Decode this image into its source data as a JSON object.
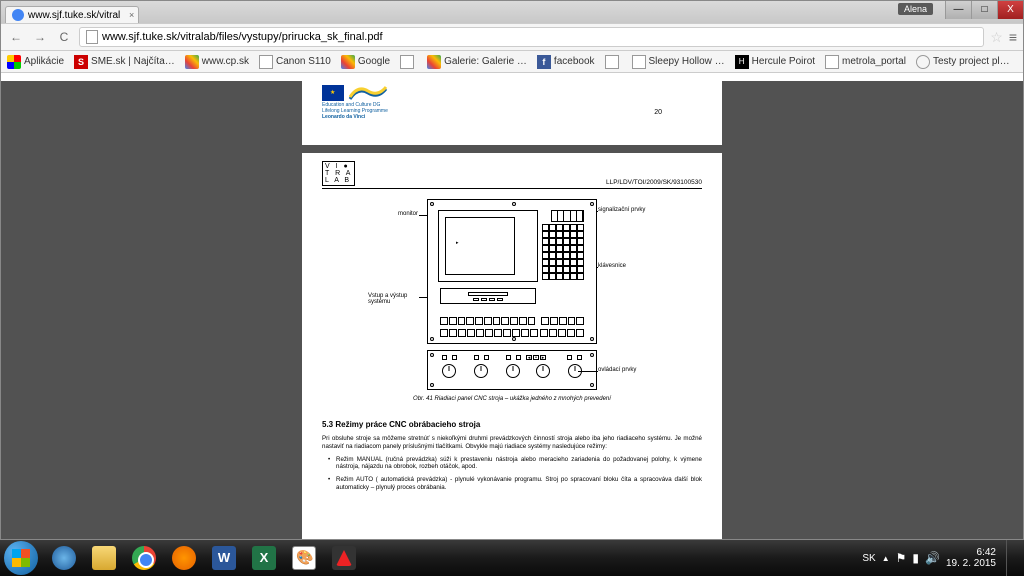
{
  "browser": {
    "tab_title": "www.sjf.tuke.sk/vitral",
    "url": "www.sjf.tuke.sk/vitralab/files/vystupy/prirucka_sk_final.pdf",
    "user_badge": "Alena"
  },
  "win_controls": {
    "min": "—",
    "max": "□",
    "close": "X"
  },
  "nav": {
    "back": "←",
    "fwd": "→",
    "reload": "C"
  },
  "bookmarks": [
    {
      "icon": "apps",
      "label": "Aplikácie"
    },
    {
      "icon": "red",
      "glyph": "S",
      "label": "SME.sk | Najčíta…"
    },
    {
      "icon": "google",
      "label": "www.cp.sk"
    },
    {
      "icon": "page",
      "label": "Canon S110"
    },
    {
      "icon": "google",
      "label": "Google"
    },
    {
      "icon": "page",
      "label": ""
    },
    {
      "icon": "google",
      "label": "Galerie: Galerie …"
    },
    {
      "icon": "fb",
      "glyph": "f",
      "label": "facebook"
    },
    {
      "icon": "page",
      "label": ""
    },
    {
      "icon": "page",
      "label": "Sleepy Hollow …"
    },
    {
      "icon": "hp",
      "glyph": "H",
      "label": "Hercule Poirot"
    },
    {
      "icon": "page",
      "label": "metrola_portal"
    },
    {
      "icon": "clock",
      "label": "Testy project pl…"
    }
  ],
  "pdf": {
    "top_page": {
      "leonardo": "Lifelong Learning Programme",
      "leonardo2": "Leonardo da Vinci",
      "edu_label": "Education and Culture DG",
      "page_number": "20"
    },
    "main_page": {
      "vitralab": [
        "V I ●",
        "T R A",
        "L A B"
      ],
      "doc_code": "LLP/LDV/TOI/2009/SK/93100530",
      "labels": {
        "monitor": "monitor",
        "signal": "signalizační prvky",
        "keyboard": "klávesnice",
        "io": "Vstup a výstup\nsystému",
        "controls": "ovládací prvky"
      },
      "caption": "Obr. 41  Riadiaci panel CNC stroja – ukážka jedného z mnohých prevedení",
      "section": "5.3   Režimy práce CNC obrábacieho stroja",
      "para1": "Pri obsluhe stroje sa môžeme stretnúť s niekoľkými druhmi prevádzkových činností stroja alebo iba jeho riadiaceho systému. Je možné nastaviť na riadiacom panely príslušnými tlačítkami. Obvykle majú riadiace systémy nasledujúce režimy:",
      "bullet1": "Režim MANUAL (ručná prevádzka) súži k prestaveniu nástroja alebo meracieho zariadenia do požadovanej polohy, k výmene nástroja, nájazdu na obrobok, rozbeh otáčok, apod.",
      "bullet2": "Režim AUTO ( automatická prevádzka) - plynulé vykonávanie programu. Stroj po spracovaní bloku číta a spracováva ďalší blok automaticky – plynulý proces obrábania."
    }
  },
  "tray": {
    "lang": "SK",
    "time": "6:42",
    "date": "19. 2. 2015"
  }
}
